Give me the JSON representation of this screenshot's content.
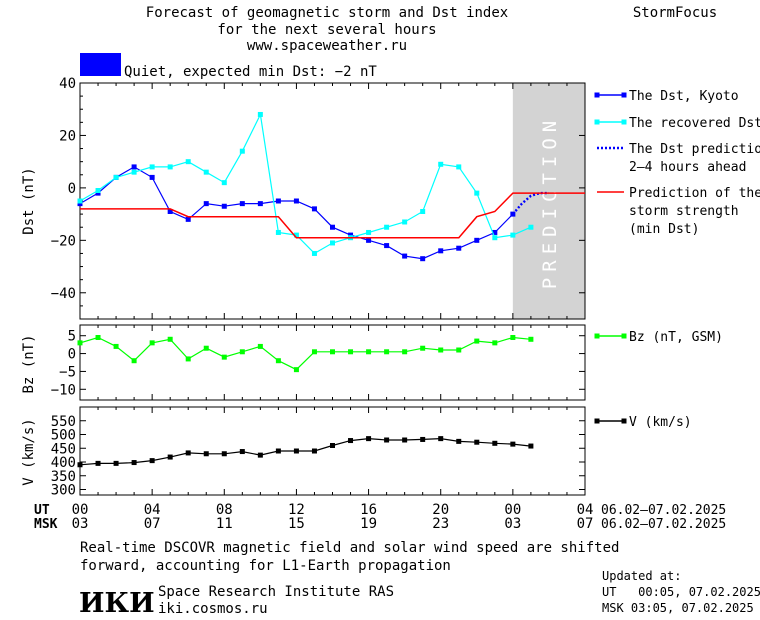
{
  "header": {
    "title_lines": [
      "Forecast of geomagnetic storm and Dst index",
      "for the next several hours",
      "www.spaceweather.ru"
    ],
    "brand": "StormFocus",
    "status_label": "Quiet, expected min Dst: −2 nT",
    "status_color": "#0000ff"
  },
  "chart_data": [
    {
      "type": "line",
      "panel": "dst",
      "ylabel": "Dst (nT)",
      "ylim": [
        -50,
        40
      ],
      "yticks": [
        -40,
        -20,
        0,
        20,
        40
      ],
      "xlim": [
        0,
        28
      ],
      "prediction_zone": [
        24,
        28
      ],
      "prediction_label": "PREDICTION",
      "series": [
        {
          "name": "The Dst, Kyoto",
          "color": "#0000ff",
          "x": [
            0,
            1,
            2,
            3,
            4,
            5,
            6,
            7,
            8,
            9,
            10,
            11,
            12,
            13,
            14,
            15,
            16,
            17,
            18,
            19,
            20,
            21,
            22,
            23,
            24
          ],
          "y": [
            -6,
            -2,
            4,
            8,
            4,
            -9,
            -12,
            -6,
            -7,
            -6,
            -6,
            -5,
            -5,
            -8,
            -15,
            -18,
            -20,
            -22,
            -26,
            -27,
            -24,
            -23,
            -20,
            -17,
            -10
          ]
        },
        {
          "name": "The recovered Dst",
          "color": "#00ffff",
          "x": [
            0,
            1,
            2,
            3,
            4,
            5,
            6,
            7,
            8,
            9,
            10,
            11,
            12,
            13,
            14,
            15,
            16,
            17,
            18,
            19,
            20,
            21,
            22,
            23,
            24,
            25
          ],
          "y": [
            -5,
            -1,
            4,
            6,
            8,
            8,
            10,
            6,
            2,
            14,
            28,
            -17,
            -18,
            -25,
            -21,
            -19,
            -17,
            -15,
            -13,
            -9,
            9,
            8,
            -2,
            -19,
            -18,
            -15
          ]
        },
        {
          "name": "The Dst prediction\n2–4 hours ahead",
          "color": "#0000ff",
          "style": "dotted",
          "x": [
            24,
            24.5,
            25,
            25.5,
            26
          ],
          "y": [
            -10,
            -6,
            -3,
            -2,
            -2
          ]
        },
        {
          "name": "Prediction of the\nstorm strength\n(min Dst)",
          "color": "#ff0000",
          "style": "step",
          "x": [
            0,
            5,
            6,
            11,
            12,
            21,
            22,
            23,
            24,
            28
          ],
          "y": [
            -8,
            -8,
            -11,
            -11,
            -19,
            -19,
            -11,
            -9,
            -2,
            -2
          ]
        }
      ]
    },
    {
      "type": "line",
      "panel": "bz",
      "ylabel": "Bz (nT)",
      "ylim": [
        -13,
        8
      ],
      "yticks": [
        -10,
        -5,
        0,
        5
      ],
      "series": [
        {
          "name": "Bz (nT, GSM)",
          "color": "#00ff00",
          "x": [
            0,
            1,
            2,
            3,
            4,
            5,
            6,
            7,
            8,
            9,
            10,
            11,
            12,
            13,
            14,
            15,
            16,
            17,
            18,
            19,
            20,
            21,
            22,
            23,
            24,
            25
          ],
          "y": [
            3,
            4.5,
            2,
            -2,
            3,
            4,
            -1.5,
            1.5,
            -1,
            0.5,
            2,
            -2,
            -4.5,
            0.5,
            0.5,
            0.5,
            0.5,
            0.5,
            0.5,
            1.5,
            1,
            1,
            3.5,
            3,
            4.5,
            4
          ]
        }
      ]
    },
    {
      "type": "line",
      "panel": "v",
      "ylabel": "V (km/s)",
      "ylim": [
        280,
        600
      ],
      "yticks": [
        300,
        350,
        400,
        450,
        500,
        550
      ],
      "series": [
        {
          "name": "V (km/s)",
          "color": "#000000",
          "x": [
            0,
            1,
            2,
            3,
            4,
            5,
            6,
            7,
            8,
            9,
            10,
            11,
            12,
            13,
            14,
            15,
            16,
            17,
            18,
            19,
            20,
            21,
            22,
            23,
            24,
            25
          ],
          "y": [
            390,
            395,
            395,
            398,
            405,
            418,
            433,
            430,
            430,
            438,
            425,
            440,
            440,
            440,
            460,
            478,
            485,
            480,
            480,
            482,
            485,
            475,
            472,
            468,
            465,
            458
          ]
        }
      ]
    }
  ],
  "x_axis": {
    "ut_label": "UT",
    "msk_label": "MSK",
    "ut_ticks": [
      "00",
      "04",
      "08",
      "12",
      "16",
      "20",
      "00",
      "04"
    ],
    "msk_ticks": [
      "03",
      "07",
      "11",
      "15",
      "19",
      "23",
      "03",
      "07"
    ],
    "ut_range": "06.02–07.02.2025",
    "msk_range": "06.02–07.02.2025"
  },
  "footer": {
    "note_lines": [
      "Real-time DSCOVR magnetic field and solar wind speed are shifted",
      "forward, accounting for L1-Earth propagation"
    ],
    "logo_text": "ИКИ",
    "institute": "Space Research Institute RAS",
    "site": "iki.cosmos.ru",
    "updated_label": "Updated at:",
    "updated_ut": "UT   00:05, 07.02.2025",
    "updated_msk": "MSK 03:05, 07.02.2025"
  }
}
